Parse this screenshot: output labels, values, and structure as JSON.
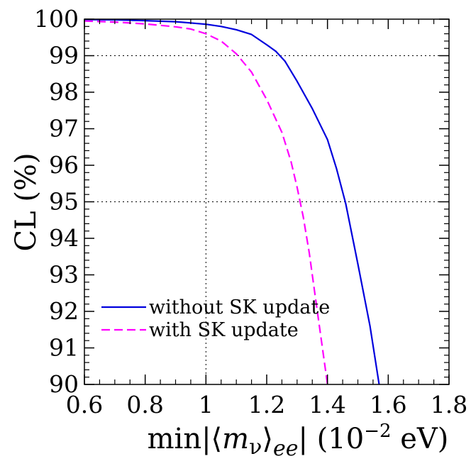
{
  "chart_data": {
    "type": "line",
    "title": "",
    "xlabel_parts": {
      "prefix": "min|⟨",
      "m": "m",
      "nu": "ν",
      "close": "⟩",
      "sub": "ee",
      "suffix": "| (10",
      "exp": "−2",
      "unit": " eV)"
    },
    "ylabel": "CL (%)",
    "xlim": [
      0.6,
      1.8
    ],
    "ylim": [
      90,
      100
    ],
    "xticks": [
      0.6,
      0.8,
      1,
      1.2,
      1.4,
      1.6,
      1.8
    ],
    "xtick_labels": [
      "0.6",
      "0.8",
      "1",
      "1.2",
      "1.4",
      "1.6",
      "1.8"
    ],
    "yticks": [
      90,
      91,
      92,
      93,
      94,
      95,
      96,
      97,
      98,
      99,
      100
    ],
    "ytick_labels": [
      "90",
      "91",
      "92",
      "93",
      "94",
      "95",
      "96",
      "97",
      "98",
      "99",
      "100"
    ],
    "reference_lines": {
      "y": [
        99,
        95
      ],
      "x": [
        1.0
      ]
    },
    "legend_position": "bottom-left",
    "series": [
      {
        "name": "without SK update",
        "color": "#0000dd",
        "style": "solid",
        "x": [
          0.6,
          0.7,
          0.8,
          0.9,
          1.0,
          1.05,
          1.1,
          1.15,
          1.2,
          1.23,
          1.26,
          1.3,
          1.35,
          1.4,
          1.43,
          1.46,
          1.5,
          1.54,
          1.57
        ],
        "y": [
          99.99,
          99.98,
          99.96,
          99.93,
          99.86,
          99.8,
          99.71,
          99.58,
          99.3,
          99.12,
          98.85,
          98.3,
          97.55,
          96.7,
          95.9,
          94.95,
          93.3,
          91.6,
          90.0
        ]
      },
      {
        "name": "with SK update",
        "color": "#ff00ff",
        "style": "dashed",
        "x": [
          0.6,
          0.7,
          0.8,
          0.9,
          0.95,
          1.0,
          1.05,
          1.1,
          1.15,
          1.2,
          1.25,
          1.28,
          1.3,
          1.32,
          1.34,
          1.36,
          1.38,
          1.4
        ],
        "y": [
          99.95,
          99.92,
          99.87,
          99.79,
          99.73,
          99.6,
          99.4,
          99.05,
          98.55,
          97.8,
          96.9,
          96.1,
          95.4,
          94.6,
          93.6,
          92.4,
          91.2,
          90.0
        ]
      }
    ]
  }
}
